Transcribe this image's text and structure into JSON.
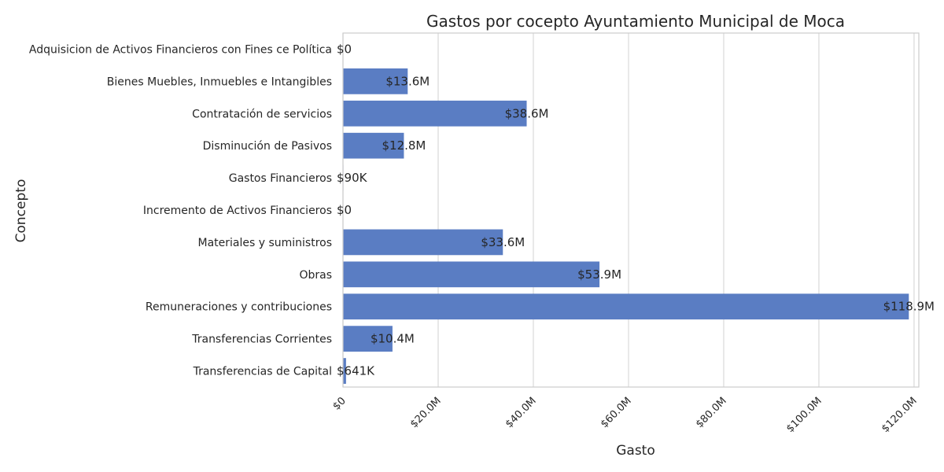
{
  "chart_data": {
    "type": "bar",
    "orientation": "horizontal",
    "title": "Gastos por cocepto Ayuntamiento Municipal de Moca",
    "xlabel": "Gasto",
    "ylabel": "Concepto",
    "categories": [
      "Adquisicion de Activos Financieros con Fines ce Política",
      "Bienes Muebles, Inmuebles e Intangibles",
      "Contratación de servicios",
      "Disminución de Pasivos",
      "Gastos Financieros",
      "Incremento de Activos Financieros",
      "Materiales y suministros",
      "Obras",
      "Remuneraciones y contribuciones",
      "Transferencias Corrientes",
      "Transferencias de Capital"
    ],
    "values": [
      0,
      13600000,
      38600000,
      12800000,
      90000,
      0,
      33600000,
      53900000,
      118900000,
      10400000,
      641000
    ],
    "data_labels": [
      "$0",
      "$13.6M",
      "$38.6M",
      "$12.8M",
      "$90K",
      "$0",
      "$33.6M",
      "$53.9M",
      "$118.9M",
      "$10.4M",
      "$641K"
    ],
    "xlim": [
      0,
      121000000
    ],
    "x_ticks": [
      0,
      20000000,
      40000000,
      60000000,
      80000000,
      100000000,
      120000000
    ],
    "x_tick_labels": [
      "$0",
      "$20.0M",
      "$40.0M",
      "$60.0M",
      "$80.0M",
      "$100.0M",
      "$120.0M"
    ],
    "grid": "vertical",
    "bar_color": "#5a7dc3",
    "grid_color": "#d9d9d9"
  }
}
